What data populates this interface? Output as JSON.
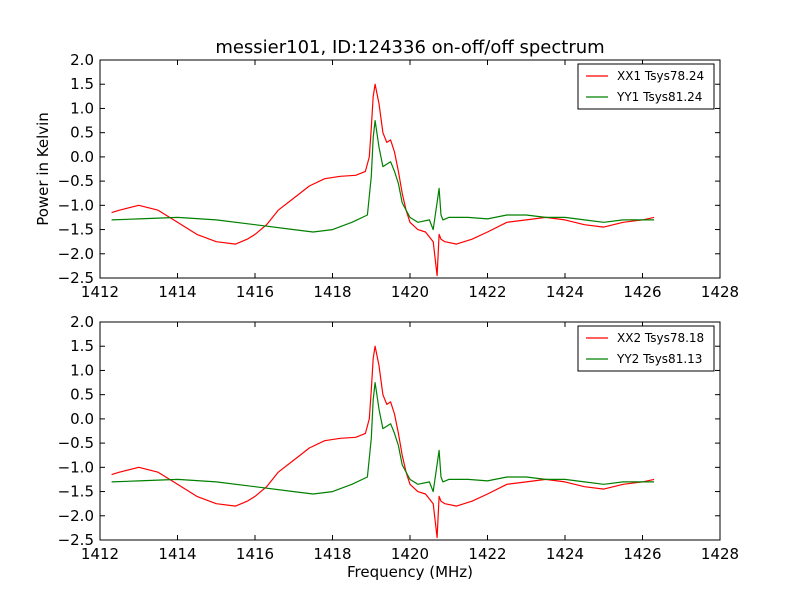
{
  "chart_data": [
    {
      "type": "line",
      "title": "messier101, ID:124336 on-off/off spectrum",
      "xlabel": "",
      "ylabel": "Power in Kelvin",
      "xlim": [
        1412,
        1428
      ],
      "ylim": [
        -2.5,
        2.0
      ],
      "xticks": [
        "1412",
        "1414",
        "1416",
        "1418",
        "1420",
        "1422",
        "1424",
        "1426",
        "1428"
      ],
      "yticks": [
        "2.0",
        "1.5",
        "1.0",
        "0.5",
        "0.0",
        "−0.5",
        "−1.0",
        "−1.5",
        "−2.0",
        "−2.5"
      ],
      "grid": false,
      "legend": "top-right",
      "series": [
        {
          "name": "XX1 Tsys78.24",
          "color": "#ff0000",
          "x": [
            1412.3,
            1412.5,
            1413.0,
            1413.5,
            1414.0,
            1414.5,
            1415.0,
            1415.5,
            1415.8,
            1416.0,
            1416.3,
            1416.6,
            1417.0,
            1417.4,
            1417.8,
            1418.2,
            1418.6,
            1418.85,
            1418.95,
            1419.0,
            1419.05,
            1419.1,
            1419.2,
            1419.3,
            1419.4,
            1419.5,
            1419.6,
            1419.7,
            1419.8,
            1419.9,
            1420.0,
            1420.2,
            1420.4,
            1420.6,
            1420.7,
            1420.75,
            1420.8,
            1420.9,
            1421.2,
            1421.6,
            1422.0,
            1422.5,
            1423.0,
            1423.5,
            1424.0,
            1424.5,
            1425.0,
            1425.5,
            1426.0,
            1426.3
          ],
          "y": [
            -1.15,
            -1.1,
            -1.0,
            -1.1,
            -1.35,
            -1.6,
            -1.75,
            -1.8,
            -1.7,
            -1.6,
            -1.4,
            -1.1,
            -0.85,
            -0.6,
            -0.45,
            -0.4,
            -0.38,
            -0.3,
            0.0,
            0.6,
            1.25,
            1.5,
            1.1,
            0.5,
            0.3,
            0.35,
            0.1,
            -0.3,
            -0.75,
            -1.1,
            -1.35,
            -1.5,
            -1.55,
            -1.75,
            -2.45,
            -1.6,
            -1.7,
            -1.75,
            -1.8,
            -1.7,
            -1.55,
            -1.35,
            -1.3,
            -1.25,
            -1.3,
            -1.4,
            -1.45,
            -1.35,
            -1.3,
            -1.25
          ]
        },
        {
          "name": "YY1 Tsys81.24",
          "color": "#008000",
          "x": [
            1412.3,
            1413.0,
            1414.0,
            1415.0,
            1416.0,
            1417.0,
            1417.5,
            1418.0,
            1418.5,
            1418.9,
            1419.0,
            1419.05,
            1419.1,
            1419.2,
            1419.3,
            1419.5,
            1419.6,
            1419.7,
            1419.8,
            1420.0,
            1420.2,
            1420.5,
            1420.6,
            1420.75,
            1420.8,
            1420.85,
            1421.0,
            1421.5,
            1422.0,
            1422.5,
            1423.0,
            1423.5,
            1424.0,
            1424.5,
            1425.0,
            1425.5,
            1426.0,
            1426.3
          ],
          "y": [
            -1.3,
            -1.28,
            -1.25,
            -1.3,
            -1.4,
            -1.5,
            -1.55,
            -1.5,
            -1.35,
            -1.2,
            -0.4,
            0.4,
            0.75,
            0.2,
            -0.2,
            -0.1,
            -0.3,
            -0.55,
            -0.95,
            -1.25,
            -1.35,
            -1.3,
            -1.5,
            -0.65,
            -1.2,
            -1.3,
            -1.25,
            -1.25,
            -1.28,
            -1.2,
            -1.2,
            -1.25,
            -1.25,
            -1.3,
            -1.35,
            -1.3,
            -1.3,
            -1.3
          ]
        }
      ]
    },
    {
      "type": "line",
      "title": "",
      "xlabel": "Frequency (MHz)",
      "ylabel": "",
      "xlim": [
        1412,
        1428
      ],
      "ylim": [
        -2.5,
        2.0
      ],
      "xticks": [
        "1412",
        "1414",
        "1416",
        "1418",
        "1420",
        "1422",
        "1424",
        "1426",
        "1428"
      ],
      "yticks": [
        "2.0",
        "1.5",
        "1.0",
        "0.5",
        "0.0",
        "−0.5",
        "−1.0",
        "−1.5",
        "−2.0",
        "−2.5"
      ],
      "grid": false,
      "legend": "top-right",
      "series": [
        {
          "name": "XX2 Tsys78.18",
          "color": "#ff0000",
          "x": [
            1412.3,
            1412.5,
            1413.0,
            1413.5,
            1414.0,
            1414.5,
            1415.0,
            1415.5,
            1415.8,
            1416.0,
            1416.3,
            1416.6,
            1417.0,
            1417.4,
            1417.8,
            1418.2,
            1418.6,
            1418.85,
            1418.95,
            1419.0,
            1419.05,
            1419.1,
            1419.2,
            1419.3,
            1419.4,
            1419.5,
            1419.6,
            1419.7,
            1419.8,
            1419.9,
            1420.0,
            1420.2,
            1420.4,
            1420.6,
            1420.7,
            1420.75,
            1420.8,
            1420.9,
            1421.2,
            1421.6,
            1422.0,
            1422.5,
            1423.0,
            1423.5,
            1424.0,
            1424.5,
            1425.0,
            1425.5,
            1426.0,
            1426.3
          ],
          "y": [
            -1.15,
            -1.1,
            -1.0,
            -1.1,
            -1.35,
            -1.6,
            -1.75,
            -1.8,
            -1.7,
            -1.6,
            -1.4,
            -1.1,
            -0.85,
            -0.6,
            -0.45,
            -0.4,
            -0.38,
            -0.3,
            0.0,
            0.6,
            1.25,
            1.5,
            1.1,
            0.5,
            0.3,
            0.35,
            0.1,
            -0.3,
            -0.75,
            -1.1,
            -1.35,
            -1.5,
            -1.55,
            -1.75,
            -2.45,
            -1.6,
            -1.7,
            -1.75,
            -1.8,
            -1.7,
            -1.55,
            -1.35,
            -1.3,
            -1.25,
            -1.3,
            -1.4,
            -1.45,
            -1.35,
            -1.3,
            -1.25
          ]
        },
        {
          "name": "YY2 Tsys81.13",
          "color": "#008000",
          "x": [
            1412.3,
            1413.0,
            1414.0,
            1415.0,
            1416.0,
            1417.0,
            1417.5,
            1418.0,
            1418.5,
            1418.9,
            1419.0,
            1419.05,
            1419.1,
            1419.2,
            1419.3,
            1419.5,
            1419.6,
            1419.7,
            1419.8,
            1420.0,
            1420.2,
            1420.5,
            1420.6,
            1420.75,
            1420.8,
            1420.85,
            1421.0,
            1421.5,
            1422.0,
            1422.5,
            1423.0,
            1423.5,
            1424.0,
            1424.5,
            1425.0,
            1425.5,
            1426.0,
            1426.3
          ],
          "y": [
            -1.3,
            -1.28,
            -1.25,
            -1.3,
            -1.4,
            -1.5,
            -1.55,
            -1.5,
            -1.35,
            -1.2,
            -0.4,
            0.4,
            0.75,
            0.2,
            -0.2,
            -0.1,
            -0.3,
            -0.55,
            -0.95,
            -1.25,
            -1.35,
            -1.3,
            -1.5,
            -0.65,
            -1.2,
            -1.3,
            -1.25,
            -1.25,
            -1.28,
            -1.2,
            -1.2,
            -1.25,
            -1.25,
            -1.3,
            -1.35,
            -1.3,
            -1.3,
            -1.3
          ]
        }
      ]
    }
  ]
}
